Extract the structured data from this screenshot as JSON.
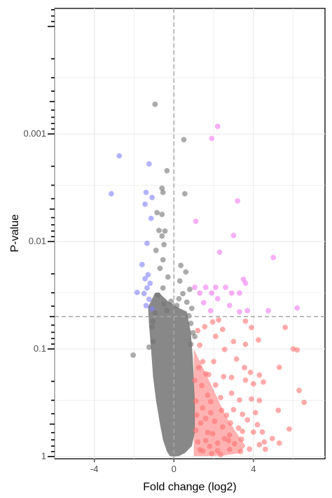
{
  "chart_data": {
    "type": "scatter",
    "title": "",
    "xlabel": "Fold change (log2)",
    "ylabel": "P-value",
    "x_axis": {
      "range": [
        -6,
        7.6
      ],
      "ticks": [
        -4,
        0,
        4
      ],
      "tick_labels": [
        "-4",
        "0",
        "4"
      ]
    },
    "y_axis": {
      "scale": "log10",
      "reversed": true,
      "range": [
        6.8e-05,
        1.05
      ],
      "ticks": [
        0.001,
        0.01,
        0.1,
        1
      ],
      "tick_labels": [
        "0.001",
        "0.01",
        "0.1",
        "1"
      ]
    },
    "thresholds": {
      "fold_change_log2": 0,
      "p_value": 0.05
    },
    "grid": true,
    "legend": "none",
    "colors": {
      "not_significant": "#737373",
      "down_significant": "#8080ff",
      "up_significant": "#f07af0",
      "up_not_significant": "#ff7373",
      "threshold_line": "#a6a6a6",
      "grid": "#ebebeb"
    },
    "series": [
      {
        "name": "",
        "color_key": "down_significant",
        "points": [
          [
            -2.75,
            0.0016
          ],
          [
            -3.15,
            0.0036
          ],
          [
            -1.25,
            0.0019
          ],
          [
            -1.4,
            0.0035
          ],
          [
            -1.1,
            0.0039
          ],
          [
            -1.45,
            0.0045
          ],
          [
            -1.15,
            0.0061
          ],
          [
            -1.35,
            0.0104
          ],
          [
            -1.6,
            0.0164
          ],
          [
            -1.3,
            0.0204
          ],
          [
            -1.45,
            0.0222
          ],
          [
            -1.2,
            0.0245
          ],
          [
            -1.35,
            0.0271
          ],
          [
            -1.85,
            0.0298
          ],
          [
            -1.5,
            0.0305
          ],
          [
            -1.25,
            0.0345
          ],
          [
            -1.4,
            0.0395
          ],
          [
            -1.1,
            0.0423
          ]
        ]
      },
      {
        "name": "",
        "color_key": "up_significant",
        "points": [
          [
            2.2,
            0.00085
          ],
          [
            1.9,
            0.0011
          ],
          [
            1.1,
            0.0065
          ],
          [
            3.2,
            0.0042
          ],
          [
            3.0,
            0.0088
          ],
          [
            5.0,
            0.0141
          ],
          [
            2.3,
            0.0126
          ],
          [
            3.5,
            0.0225
          ],
          [
            3.6,
            0.0244
          ],
          [
            1.05,
            0.0267
          ],
          [
            1.6,
            0.0267
          ],
          [
            2.1,
            0.0267
          ],
          [
            2.6,
            0.0267
          ],
          [
            3.3,
            0.0302
          ],
          [
            1.3,
            0.0302
          ],
          [
            1.9,
            0.0302
          ],
          [
            2.9,
            0.0302
          ],
          [
            2.2,
            0.0341
          ],
          [
            1.5,
            0.0371
          ],
          [
            2.8,
            0.0394
          ],
          [
            1.85,
            0.0441
          ],
          [
            4.75,
            0.0441
          ],
          [
            6.2,
            0.0416
          ],
          [
            3.7,
            0.0441
          ],
          [
            3.3,
            0.0452
          ]
        ]
      },
      {
        "name": "",
        "color_key": "not_significant",
        "points": [
          [
            -0.95,
            0.00053
          ],
          [
            0.5,
            0.00113
          ],
          [
            -0.35,
            0.0022
          ],
          [
            -0.6,
            0.0032
          ],
          [
            -0.55,
            0.0035
          ],
          [
            0.55,
            0.0036
          ],
          [
            -0.85,
            0.0054
          ],
          [
            -0.6,
            0.0056
          ],
          [
            -0.75,
            0.0079
          ],
          [
            -0.45,
            0.008
          ],
          [
            -0.6,
            0.0089
          ],
          [
            -0.5,
            0.0107
          ],
          [
            -0.9,
            0.0121
          ],
          [
            -0.55,
            0.0148
          ],
          [
            -0.7,
            0.0178
          ],
          [
            0.35,
            0.0167
          ],
          [
            0.6,
            0.0192
          ],
          [
            -0.3,
            0.0214
          ],
          [
            0.3,
            0.0233
          ],
          [
            -0.55,
            0.0271
          ],
          [
            0.8,
            0.0279
          ],
          [
            0.45,
            0.0306
          ],
          [
            -0.8,
            0.0315
          ],
          [
            0.25,
            0.0341
          ],
          [
            -0.15,
            0.0361
          ],
          [
            0.65,
            0.0367
          ],
          [
            -0.5,
            0.0381
          ],
          [
            0.15,
            0.0394
          ],
          [
            0.9,
            0.0419
          ],
          [
            -0.35,
            0.0439
          ],
          [
            -2.05,
            0.114
          ],
          [
            -1.25,
            0.0962
          ],
          [
            -1.05,
            0.0852
          ],
          [
            -1.1,
            0.0626
          ],
          [
            -1.05,
            0.0553
          ],
          [
            -0.95,
            0.0462
          ],
          [
            0.85,
            0.0578
          ],
          [
            0.95,
            0.0706
          ],
          [
            1.05,
            0.0767
          ],
          [
            0.85,
            0.0903
          ],
          [
            0.75,
            0.0491
          ]
        ]
      },
      {
        "name": "",
        "color_key": "up_not_significant",
        "points": [
          [
            6.3,
            0.243
          ],
          [
            6.55,
            0.314
          ],
          [
            5.25,
            0.372
          ],
          [
            6.0,
            0.0998
          ],
          [
            6.2,
            0.102
          ],
          [
            5.6,
            0.0629
          ],
          [
            5.3,
            0.148
          ],
          [
            5.8,
            0.555
          ],
          [
            5.3,
            0.751
          ],
          [
            4.95,
            0.681
          ],
          [
            4.55,
            0.733
          ],
          [
            4.3,
            0.777
          ],
          [
            4.5,
            0.203
          ],
          [
            4.25,
            0.0824
          ],
          [
            3.9,
            0.0631
          ],
          [
            3.6,
            0.0551
          ],
          [
            3.6,
            0.0906
          ],
          [
            3.0,
            0.0853
          ],
          [
            3.15,
            0.124
          ],
          [
            3.55,
            0.149
          ],
          [
            3.85,
            0.165
          ],
          [
            4.0,
            0.211
          ],
          [
            4.3,
            0.175
          ],
          [
            3.6,
            0.195
          ],
          [
            2.9,
            0.184
          ],
          [
            2.45,
            0.0657
          ],
          [
            2.1,
            0.0763
          ],
          [
            2.55,
            0.101
          ],
          [
            2.0,
            0.131
          ],
          [
            2.5,
            0.181
          ],
          [
            2.1,
            0.216
          ],
          [
            2.9,
            0.258
          ],
          [
            3.3,
            0.298
          ],
          [
            3.9,
            0.292
          ],
          [
            4.3,
            0.301
          ],
          [
            2.4,
            0.372
          ],
          [
            3.7,
            0.456
          ],
          [
            4.2,
            0.506
          ],
          [
            4.45,
            0.592
          ],
          [
            3.25,
            0.544
          ],
          [
            2.8,
            0.632
          ],
          [
            3.8,
            0.853
          ],
          [
            4.6,
            0.856
          ],
          [
            3.35,
            0.898
          ],
          [
            2.75,
            0.712
          ],
          [
            2.2,
            0.883
          ],
          [
            1.8,
            0.805
          ],
          [
            1.7,
            0.597
          ],
          [
            1.6,
            0.443
          ],
          [
            1.7,
            0.269
          ],
          [
            1.6,
            0.17
          ],
          [
            1.45,
            0.131
          ],
          [
            1.3,
            0.0922
          ],
          [
            1.2,
            0.0674
          ],
          [
            1.55,
            0.062
          ],
          [
            1.95,
            0.0561
          ],
          [
            2.25,
            0.0537
          ],
          [
            1.25,
            0.149
          ],
          [
            1.4,
            0.219
          ],
          [
            1.1,
            0.305
          ],
          [
            1.45,
            0.353
          ],
          [
            1.85,
            0.391
          ],
          [
            2.05,
            0.471
          ],
          [
            2.45,
            0.531
          ],
          [
            2.55,
            0.683
          ],
          [
            3.05,
            0.761
          ],
          [
            3.4,
            0.691
          ],
          [
            4.0,
            0.593
          ],
          [
            2.85,
            0.488
          ],
          [
            1.6,
            0.712
          ],
          [
            1.3,
            0.865
          ],
          [
            1.1,
            0.572
          ],
          [
            2.35,
            0.283
          ],
          [
            1.85,
            0.309
          ],
          [
            3.0,
            0.367
          ],
          [
            3.45,
            0.405
          ],
          [
            2.65,
            0.413
          ],
          [
            1.95,
            0.614
          ],
          [
            1.05,
            0.196
          ],
          [
            1.15,
            0.411
          ],
          [
            1.2,
            0.733
          ],
          [
            1.45,
            0.889
          ],
          [
            1.9,
            0.94
          ],
          [
            2.35,
            0.96
          ],
          [
            2.8,
            0.86
          ],
          [
            3.45,
            0.583
          ],
          [
            4.1,
            0.391
          ],
          [
            2.2,
            0.751
          ],
          [
            1.35,
            0.489
          ],
          [
            1.75,
            0.173
          ]
        ]
      }
    ],
    "dense_gray_envelope": {
      "color_key": "not_significant",
      "outline": [
        [
          -1.3,
          0.041
        ],
        [
          -1.25,
          0.06
        ],
        [
          -1.15,
          0.1
        ],
        [
          -1.05,
          0.18
        ],
        [
          -0.9,
          0.3
        ],
        [
          -0.7,
          0.5
        ],
        [
          -0.55,
          0.7
        ],
        [
          -0.35,
          0.9
        ],
        [
          -0.2,
          0.99
        ],
        [
          0.0,
          1.0
        ],
        [
          0.25,
          0.99
        ],
        [
          0.55,
          0.93
        ],
        [
          0.9,
          0.8
        ],
        [
          1.05,
          0.6
        ],
        [
          1.05,
          0.3
        ],
        [
          0.95,
          0.12
        ],
        [
          0.85,
          0.07
        ],
        [
          0.65,
          0.045
        ],
        [
          0.3,
          0.042
        ],
        [
          -0.3,
          0.036
        ],
        [
          -0.75,
          0.03
        ],
        [
          -0.95,
          0.03
        ]
      ]
    },
    "dense_red_envelope": {
      "color_key": "up_not_significant",
      "outline": [
        [
          1.0,
          0.1
        ],
        [
          1.9,
          0.22
        ],
        [
          2.6,
          0.42
        ],
        [
          3.2,
          0.62
        ],
        [
          3.6,
          0.8
        ],
        [
          3.3,
          0.93
        ],
        [
          2.5,
          0.98
        ],
        [
          1.6,
          0.99
        ],
        [
          1.0,
          0.99
        ],
        [
          1.0,
          0.6
        ]
      ]
    }
  }
}
